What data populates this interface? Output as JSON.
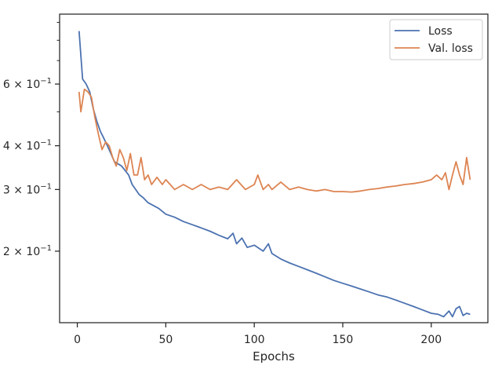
{
  "chart_data": {
    "type": "line",
    "title": "",
    "xlabel": "Epochs",
    "ylabel": "",
    "xlim": [
      -10,
      232
    ],
    "ylim": [
      0.125,
      0.95
    ],
    "yscale": "log",
    "grid": false,
    "legend_position": "top-right",
    "x_ticks": [
      0,
      50,
      100,
      150,
      200
    ],
    "y_ticks": [
      {
        "value": 0.6,
        "label_base": "6 × 10",
        "label_exp": "−1"
      },
      {
        "value": 0.4,
        "label_base": "4 × 10",
        "label_exp": "−1"
      },
      {
        "value": 0.3,
        "label_base": "3 × 10",
        "label_exp": "−1"
      },
      {
        "value": 0.2,
        "label_base": "2 × 10",
        "label_exp": "−1"
      }
    ],
    "y_minor_ticks": [
      0.9,
      0.8,
      0.7,
      0.5
    ],
    "series": [
      {
        "name": "Loss",
        "color": "#4c72b0",
        "points": [
          [
            1,
            0.85
          ],
          [
            3,
            0.62
          ],
          [
            5,
            0.6
          ],
          [
            7,
            0.57
          ],
          [
            9,
            0.51
          ],
          [
            11,
            0.47
          ],
          [
            13,
            0.44
          ],
          [
            15,
            0.42
          ],
          [
            17,
            0.4
          ],
          [
            19,
            0.38
          ],
          [
            21,
            0.36
          ],
          [
            23,
            0.355
          ],
          [
            25,
            0.35
          ],
          [
            27,
            0.34
          ],
          [
            29,
            0.33
          ],
          [
            31,
            0.31
          ],
          [
            33,
            0.3
          ],
          [
            35,
            0.29
          ],
          [
            37,
            0.285
          ],
          [
            40,
            0.275
          ],
          [
            43,
            0.27
          ],
          [
            46,
            0.265
          ],
          [
            50,
            0.255
          ],
          [
            55,
            0.25
          ],
          [
            60,
            0.243
          ],
          [
            65,
            0.238
          ],
          [
            70,
            0.233
          ],
          [
            75,
            0.228
          ],
          [
            80,
            0.222
          ],
          [
            85,
            0.217
          ],
          [
            88,
            0.225
          ],
          [
            90,
            0.21
          ],
          [
            93,
            0.218
          ],
          [
            96,
            0.205
          ],
          [
            100,
            0.208
          ],
          [
            105,
            0.2
          ],
          [
            108,
            0.21
          ],
          [
            110,
            0.197
          ],
          [
            115,
            0.19
          ],
          [
            120,
            0.185
          ],
          [
            125,
            0.181
          ],
          [
            130,
            0.177
          ],
          [
            135,
            0.173
          ],
          [
            140,
            0.169
          ],
          [
            145,
            0.165
          ],
          [
            150,
            0.162
          ],
          [
            155,
            0.159
          ],
          [
            160,
            0.156
          ],
          [
            165,
            0.153
          ],
          [
            170,
            0.15
          ],
          [
            175,
            0.148
          ],
          [
            180,
            0.145
          ],
          [
            185,
            0.142
          ],
          [
            190,
            0.139
          ],
          [
            195,
            0.136
          ],
          [
            200,
            0.133
          ],
          [
            204,
            0.132
          ],
          [
            207,
            0.13
          ],
          [
            210,
            0.135
          ],
          [
            212,
            0.13
          ],
          [
            214,
            0.137
          ],
          [
            216,
            0.139
          ],
          [
            218,
            0.131
          ],
          [
            220,
            0.133
          ],
          [
            222,
            0.132
          ]
        ]
      },
      {
        "name": "Val. loss",
        "color": "#dd8452",
        "points": [
          [
            1,
            0.57
          ],
          [
            2,
            0.5
          ],
          [
            4,
            0.58
          ],
          [
            6,
            0.57
          ],
          [
            8,
            0.55
          ],
          [
            10,
            0.48
          ],
          [
            12,
            0.43
          ],
          [
            14,
            0.39
          ],
          [
            16,
            0.41
          ],
          [
            18,
            0.4
          ],
          [
            20,
            0.37
          ],
          [
            22,
            0.35
          ],
          [
            24,
            0.39
          ],
          [
            26,
            0.37
          ],
          [
            28,
            0.34
          ],
          [
            30,
            0.38
          ],
          [
            32,
            0.33
          ],
          [
            34,
            0.33
          ],
          [
            36,
            0.37
          ],
          [
            38,
            0.32
          ],
          [
            40,
            0.33
          ],
          [
            42,
            0.31
          ],
          [
            45,
            0.325
          ],
          [
            48,
            0.31
          ],
          [
            50,
            0.32
          ],
          [
            55,
            0.3
          ],
          [
            60,
            0.31
          ],
          [
            65,
            0.3
          ],
          [
            70,
            0.31
          ],
          [
            75,
            0.3
          ],
          [
            80,
            0.305
          ],
          [
            85,
            0.3
          ],
          [
            90,
            0.32
          ],
          [
            95,
            0.3
          ],
          [
            100,
            0.31
          ],
          [
            102,
            0.33
          ],
          [
            105,
            0.3
          ],
          [
            108,
            0.31
          ],
          [
            110,
            0.3
          ],
          [
            115,
            0.315
          ],
          [
            120,
            0.3
          ],
          [
            125,
            0.305
          ],
          [
            130,
            0.3
          ],
          [
            135,
            0.297
          ],
          [
            140,
            0.3
          ],
          [
            145,
            0.296
          ],
          [
            150,
            0.296
          ],
          [
            155,
            0.295
          ],
          [
            160,
            0.297
          ],
          [
            165,
            0.3
          ],
          [
            170,
            0.302
          ],
          [
            175,
            0.305
          ],
          [
            180,
            0.307
          ],
          [
            185,
            0.31
          ],
          [
            190,
            0.312
          ],
          [
            195,
            0.315
          ],
          [
            200,
            0.32
          ],
          [
            203,
            0.33
          ],
          [
            206,
            0.32
          ],
          [
            208,
            0.335
          ],
          [
            210,
            0.3
          ],
          [
            212,
            0.33
          ],
          [
            214,
            0.36
          ],
          [
            216,
            0.33
          ],
          [
            218,
            0.31
          ],
          [
            220,
            0.37
          ],
          [
            222,
            0.32
          ]
        ]
      }
    ]
  }
}
